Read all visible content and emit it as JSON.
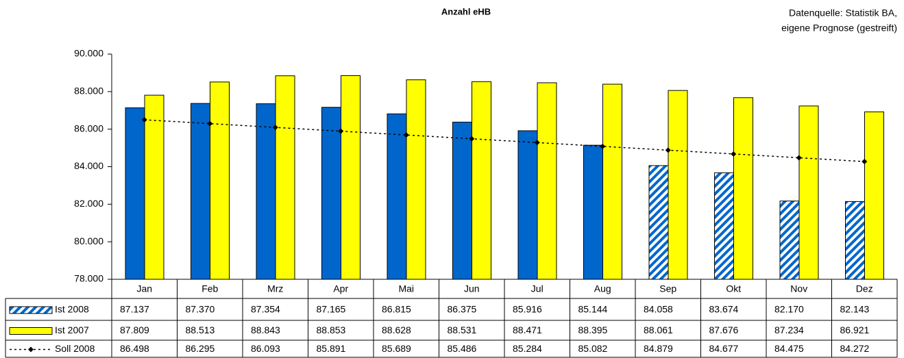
{
  "chart_data": {
    "type": "bar",
    "title": "Anzahl eHB",
    "source_note": [
      "Datenquelle: Statistik BA,",
      "eigene Prognose (gestreift)"
    ],
    "categories": [
      "Jan",
      "Feb",
      "Mrz",
      "Apr",
      "Mai",
      "Jun",
      "Jul",
      "Aug",
      "Sep",
      "Okt",
      "Nov",
      "Dez"
    ],
    "series": [
      {
        "name": "Ist 2008",
        "type": "bar",
        "color": "#0066cc",
        "hatched": [
          false,
          false,
          false,
          false,
          false,
          false,
          false,
          false,
          true,
          true,
          true,
          true
        ],
        "values": [
          87137,
          87370,
          87354,
          87165,
          86815,
          86375,
          85916,
          85144,
          84058,
          83674,
          82170,
          82143
        ],
        "value_labels": [
          "87.137",
          "87.370",
          "87.354",
          "87.165",
          "86.815",
          "86.375",
          "85.916",
          "85.144",
          "84.058",
          "83.674",
          "82.170",
          "82.143"
        ]
      },
      {
        "name": "Ist 2007",
        "type": "bar",
        "color": "#ffff00",
        "values": [
          87809,
          88513,
          88843,
          88853,
          88628,
          88531,
          88471,
          88395,
          88061,
          87676,
          87234,
          86921
        ],
        "value_labels": [
          "87.809",
          "88.513",
          "88.843",
          "88.853",
          "88.628",
          "88.531",
          "88.471",
          "88.395",
          "88.061",
          "87.676",
          "87.234",
          "86.921"
        ]
      },
      {
        "name": "Soll 2008",
        "type": "line",
        "color": "#000000",
        "values": [
          86498,
          86295,
          86093,
          85891,
          85689,
          85486,
          85284,
          85082,
          84879,
          84677,
          84475,
          84272
        ],
        "value_labels": [
          "86.498",
          "86.295",
          "86.093",
          "85.891",
          "85.689",
          "85.486",
          "85.284",
          "85.082",
          "84.879",
          "84.677",
          "84.475",
          "84.272"
        ]
      }
    ],
    "ylim": [
      78000,
      90000
    ],
    "yticks": [
      {
        "value": 78000,
        "label": "78.000"
      },
      {
        "value": 80000,
        "label": "80.000"
      },
      {
        "value": 82000,
        "label": "82.000"
      },
      {
        "value": 84000,
        "label": "84.000"
      },
      {
        "value": 86000,
        "label": "86.000"
      },
      {
        "value": 88000,
        "label": "88.000"
      },
      {
        "value": 90000,
        "label": "90.000"
      }
    ],
    "grid": false,
    "data_table": true
  }
}
